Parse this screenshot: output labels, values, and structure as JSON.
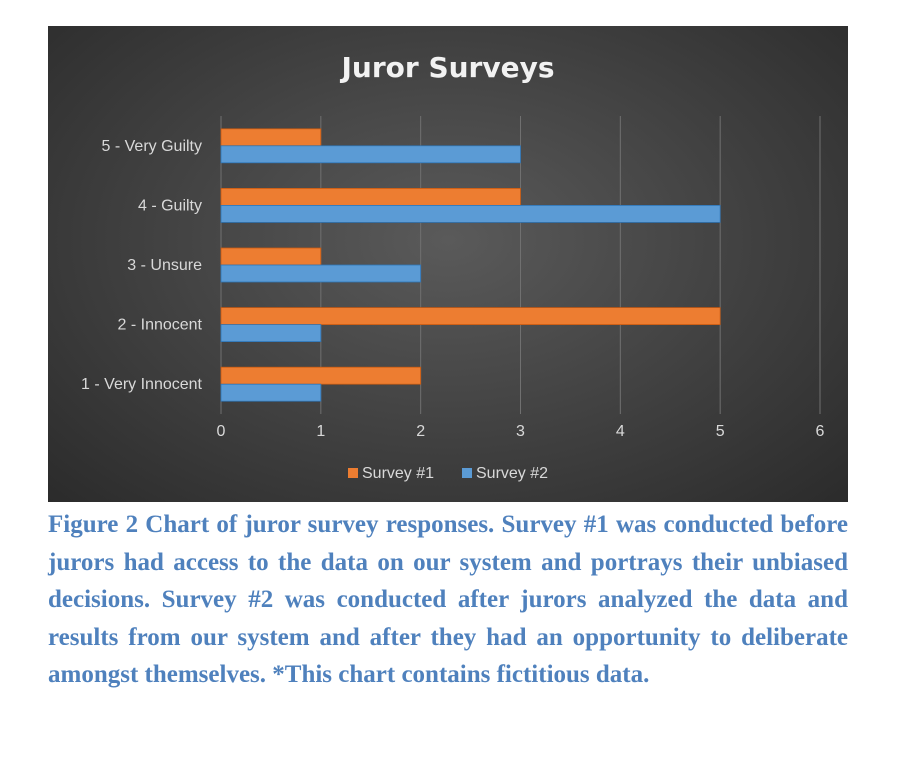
{
  "chart_data": {
    "type": "bar",
    "orientation": "horizontal",
    "title": "Juror Surveys",
    "categories": [
      "1 - Very Innocent",
      "2 - Innocent",
      "3 - Unsure",
      "4 - Guilty",
      "5 - Very Guilty"
    ],
    "series": [
      {
        "name": "Survey #1",
        "values": [
          2,
          5,
          1,
          3,
          1
        ],
        "color": "#ed7d31"
      },
      {
        "name": "Survey #2",
        "values": [
          1,
          1,
          2,
          5,
          3
        ],
        "color": "#5b9bd5"
      }
    ],
    "xlim": [
      0,
      6
    ],
    "xticks": [
      "0",
      "1",
      "2",
      "3",
      "4",
      "5",
      "6"
    ],
    "grid": true,
    "legend_position": "bottom",
    "background": "#404040"
  },
  "caption": "Figure 2 Chart of juror survey responses. Survey #1 was conducted before jurors had access to the data on our system and portrays their unbiased decisions. Survey #2 was conducted after jurors analyzed the data and results from our system and after they had an opportunity to deliberate amongst themselves. *This chart contains fictitious data."
}
